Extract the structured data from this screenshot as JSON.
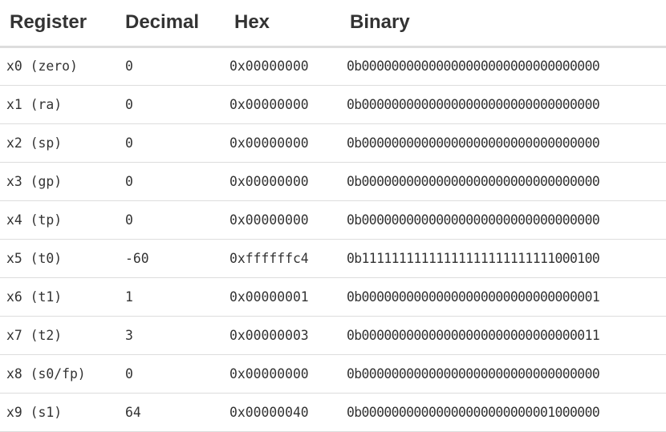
{
  "headers": {
    "register": "Register",
    "decimal": "Decimal",
    "hex": "Hex",
    "binary": "Binary"
  },
  "rows": [
    {
      "register": "x0 (zero)",
      "decimal": "0",
      "hex": "0x00000000",
      "binary": "0b00000000000000000000000000000000"
    },
    {
      "register": "x1 (ra)",
      "decimal": "0",
      "hex": "0x00000000",
      "binary": "0b00000000000000000000000000000000"
    },
    {
      "register": "x2 (sp)",
      "decimal": "0",
      "hex": "0x00000000",
      "binary": "0b00000000000000000000000000000000"
    },
    {
      "register": "x3 (gp)",
      "decimal": "0",
      "hex": "0x00000000",
      "binary": "0b00000000000000000000000000000000"
    },
    {
      "register": "x4 (tp)",
      "decimal": "0",
      "hex": "0x00000000",
      "binary": "0b00000000000000000000000000000000"
    },
    {
      "register": "x5 (t0)",
      "decimal": "-60",
      "hex": "0xffffffc4",
      "binary": "0b11111111111111111111111111000100"
    },
    {
      "register": "x6 (t1)",
      "decimal": "1",
      "hex": "0x00000001",
      "binary": "0b00000000000000000000000000000001"
    },
    {
      "register": "x7 (t2)",
      "decimal": "3",
      "hex": "0x00000003",
      "binary": "0b00000000000000000000000000000011"
    },
    {
      "register": "x8 (s0/fp)",
      "decimal": "0",
      "hex": "0x00000000",
      "binary": "0b00000000000000000000000000000000"
    },
    {
      "register": "x9 (s1)",
      "decimal": "64",
      "hex": "0x00000040",
      "binary": "0b00000000000000000000000001000000"
    }
  ]
}
